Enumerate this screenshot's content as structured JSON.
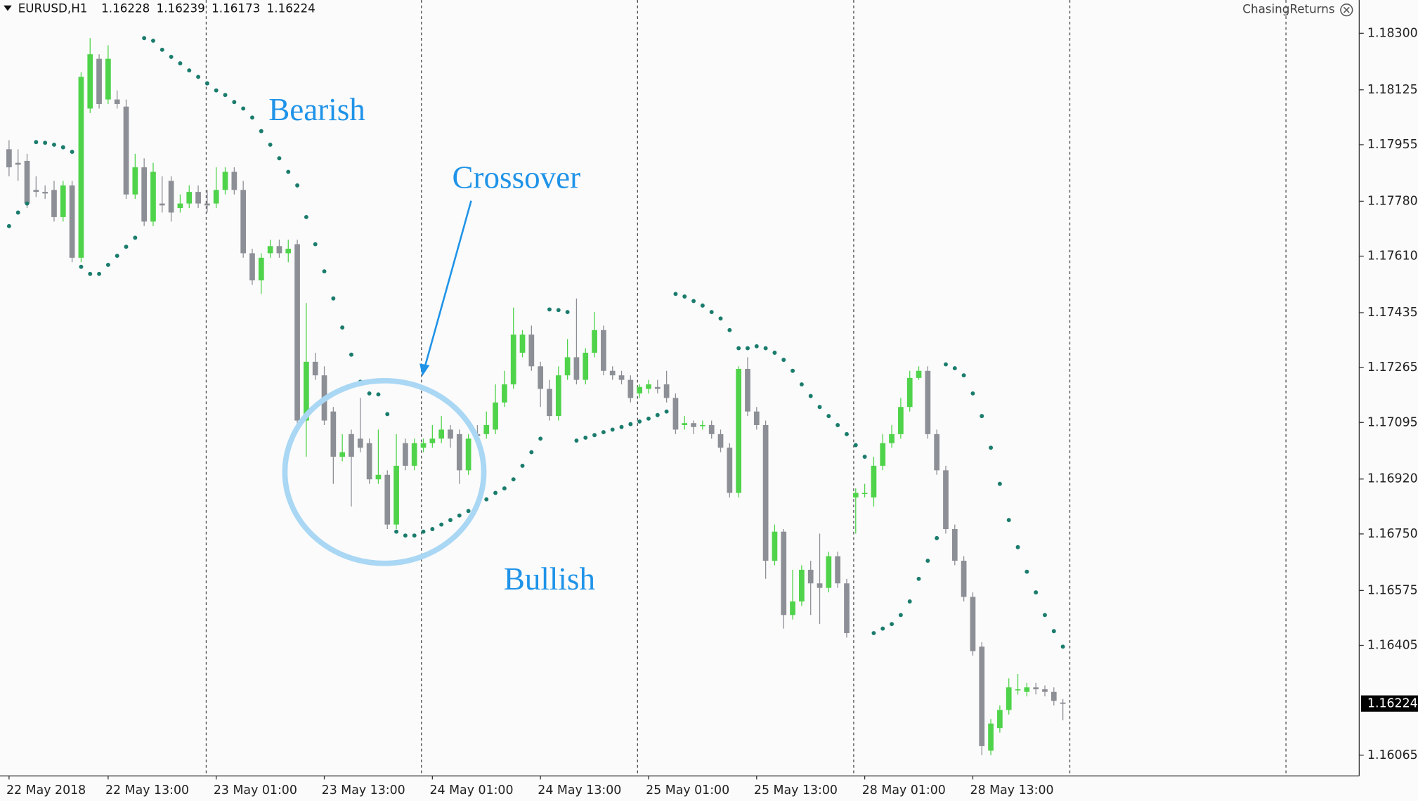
{
  "header": {
    "symbol": "EURUSD,H1",
    "watermark": "ChasingReturns"
  },
  "chart_data": {
    "type": "candlestick",
    "categories": [
      "22 May 2018",
      null,
      null,
      null,
      null,
      null,
      null,
      null,
      null,
      null,
      null,
      "22 May 13:00",
      null,
      null,
      null,
      null,
      null,
      null,
      null,
      null,
      null,
      null,
      null,
      "23 May 01:00",
      null,
      null,
      null,
      null,
      null,
      null,
      null,
      null,
      null,
      null,
      null,
      "23 May 13:00",
      null,
      null,
      null,
      null,
      null,
      null,
      null,
      null,
      null,
      null,
      null,
      "24 May 01:00",
      null,
      null,
      null,
      null,
      null,
      null,
      null,
      null,
      null,
      null,
      null,
      "24 May 13:00",
      null,
      null,
      null,
      null,
      null,
      null,
      null,
      null,
      null,
      null,
      null,
      "25 May 01:00",
      null,
      null,
      null,
      null,
      null,
      null,
      null,
      null,
      null,
      null,
      null,
      "25 May 13:00",
      null,
      null,
      null,
      null,
      null,
      null,
      null,
      null,
      null,
      null,
      null,
      "28 May 01:00",
      null,
      null,
      null,
      null,
      null,
      null,
      null,
      null,
      null,
      null,
      null,
      "28 May 13:00",
      null,
      null,
      null,
      null,
      null,
      null,
      null,
      null,
      null,
      null
    ],
    "open": [
      1.17941,
      1.17899,
      1.17905,
      1.17815,
      1.17809,
      1.17815,
      1.17731,
      1.17829,
      1.17605,
      1.18067,
      1.18221,
      1.18095,
      1.18095,
      1.18073,
      1.17801,
      1.17885,
      1.17717,
      1.17773,
      1.17843,
      1.17759,
      1.17773,
      1.17809,
      1.17773,
      1.17773,
      1.17815,
      1.17871,
      1.17815,
      1.17619,
      1.17535,
      1.17619,
      1.17641,
      1.17619,
      1.17647,
      1.17101,
      1.17283,
      1.17241,
      1.17129,
      1.16989,
      1.17059,
      1.17045,
      1.17031,
      1.16919,
      1.16933,
      1.16779,
      1.17031,
      1.16961,
      1.17017,
      1.17031,
      1.17045,
      1.17073,
      1.17059,
      1.16947,
      1.17059,
      1.17059,
      1.17073,
      1.17157,
      1.17213,
      1.17311,
      1.17367,
      1.17269,
      1.17199,
      1.17115,
      1.17241,
      1.17297,
      1.17227,
      1.17311,
      1.17381,
      1.17255,
      1.17241,
      1.17227,
      1.17185,
      1.17199,
      1.17205,
      1.17213,
      1.17171,
      1.17087,
      1.17093,
      1.17087,
      1.17087,
      1.17059,
      1.17017,
      1.16877,
      1.17261,
      1.17129,
      1.17087,
      1.16667,
      1.16757,
      1.16499,
      1.16541,
      1.16639,
      1.16597,
      1.16583,
      1.16681,
      1.16597,
      1.16863,
      1.16877,
      1.16863,
      1.16961,
      1.17031,
      1.17059,
      1.17143,
      1.17233,
      1.17255,
      1.17059,
      1.16947,
      1.16765,
      1.16667,
      1.16555,
      1.16401,
      1.16079,
      1.16149,
      1.16205,
      1.16269,
      1.16261,
      1.16275,
      1.16269,
      1.16261,
      1.16228
    ],
    "high": [
      1.17969,
      1.17941,
      1.17927,
      1.17857,
      1.17829,
      1.17843,
      1.17843,
      1.17843,
      1.18179,
      1.18285,
      1.18235,
      1.18263,
      1.18123,
      1.18095,
      1.17927,
      1.17913,
      1.17899,
      1.17857,
      1.17857,
      1.17801,
      1.17829,
      1.17829,
      1.17815,
      1.17885,
      1.17885,
      1.17885,
      1.17843,
      1.17633,
      1.17619,
      1.17661,
      1.17661,
      1.17661,
      1.17661,
      1.17465,
      1.17311,
      1.17269,
      1.17143,
      1.17059,
      1.17073,
      1.17171,
      1.17045,
      1.17073,
      1.16947,
      1.17059,
      1.17045,
      1.17045,
      1.17045,
      1.17087,
      1.17115,
      1.17087,
      1.17073,
      1.17059,
      1.17087,
      1.17129,
      1.17213,
      1.17255,
      1.17451,
      1.17381,
      1.17395,
      1.17283,
      1.17227,
      1.17269,
      1.17353,
      1.17479,
      1.17325,
      1.17437,
      1.17395,
      1.17269,
      1.17255,
      1.17241,
      1.17213,
      1.17227,
      1.17227,
      1.17255,
      1.17185,
      1.17115,
      1.17101,
      1.17101,
      1.17101,
      1.17073,
      1.17031,
      1.17269,
      1.17297,
      1.17143,
      1.17101,
      1.16779,
      1.16765,
      1.16639,
      1.16653,
      1.16667,
      1.16751,
      1.16695,
      1.16695,
      1.16611,
      1.16891,
      1.16905,
      1.16989,
      1.17059,
      1.17087,
      1.17171,
      1.17255,
      1.17269,
      1.17269,
      1.17073,
      1.16961,
      1.16779,
      1.16681,
      1.16569,
      1.16415,
      1.16177,
      1.16219,
      1.16303,
      1.16317,
      1.16289,
      1.16289,
      1.16281,
      1.16275,
      1.16239
    ],
    "low": [
      1.17857,
      1.17843,
      1.17759,
      1.17793,
      1.17787,
      1.17717,
      1.17717,
      1.17591,
      1.17591,
      1.18053,
      1.18067,
      1.18081,
      1.18067,
      1.17787,
      1.17787,
      1.17703,
      1.17703,
      1.17745,
      1.17717,
      1.17745,
      1.17759,
      1.17759,
      1.17745,
      1.17759,
      1.17801,
      1.17801,
      1.17605,
      1.17521,
      1.17493,
      1.17605,
      1.17605,
      1.17591,
      1.17087,
      1.16989,
      1.17227,
      1.17087,
      1.16905,
      1.16975,
      1.16835,
      1.17003,
      1.16905,
      1.16905,
      1.16765,
      1.16765,
      1.16947,
      1.16947,
      1.17003,
      1.17017,
      1.17031,
      1.17017,
      1.16905,
      1.16933,
      1.17031,
      1.17045,
      1.17059,
      1.17143,
      1.17199,
      1.17297,
      1.17255,
      1.17143,
      1.17101,
      1.17101,
      1.17227,
      1.17213,
      1.17213,
      1.17297,
      1.17241,
      1.17227,
      1.17213,
      1.17157,
      1.17171,
      1.17185,
      1.17185,
      1.17157,
      1.17059,
      1.17073,
      1.17059,
      1.17073,
      1.17045,
      1.17003,
      1.16863,
      1.16863,
      1.17115,
      1.17073,
      1.16611,
      1.16653,
      1.16457,
      1.16485,
      1.16527,
      1.16499,
      1.16471,
      1.16569,
      1.16583,
      1.16429,
      1.16751,
      1.16863,
      1.16835,
      1.16947,
      1.17017,
      1.17045,
      1.17129,
      1.17227,
      1.17045,
      1.16933,
      1.16751,
      1.16653,
      1.16541,
      1.16373,
      1.16065,
      1.16065,
      1.16135,
      1.16191,
      1.16253,
      1.16247,
      1.16253,
      1.16247,
      1.16219,
      1.16173
    ],
    "close": [
      1.17885,
      1.17893,
      1.17773,
      1.17809,
      1.17804,
      1.17731,
      1.17829,
      1.17605,
      1.18165,
      1.18235,
      1.18081,
      1.18221,
      1.18081,
      1.17801,
      1.17885,
      1.17717,
      1.17871,
      1.17767,
      1.17745,
      1.17773,
      1.17809,
      1.17773,
      1.17767,
      1.17815,
      1.17871,
      1.17815,
      1.17619,
      1.17535,
      1.17605,
      1.17641,
      1.17619,
      1.17633,
      1.17101,
      1.17283,
      1.17241,
      1.17101,
      1.16989,
      1.17003,
      1.16989,
      1.17017,
      1.16919,
      1.16933,
      1.16779,
      1.16961,
      1.16961,
      1.17031,
      1.17031,
      1.17045,
      1.17073,
      1.17045,
      1.16947,
      1.17045,
      1.17053,
      1.17087,
      1.17157,
      1.17213,
      1.17367,
      1.17367,
      1.17269,
      1.17199,
      1.17115,
      1.17241,
      1.17297,
      1.17227,
      1.17311,
      1.17381,
      1.17255,
      1.17241,
      1.17227,
      1.17171,
      1.17205,
      1.17213,
      1.17199,
      1.17171,
      1.17073,
      1.17093,
      1.17081,
      1.17087,
      1.17059,
      1.17017,
      1.16877,
      1.17261,
      1.17129,
      1.17087,
      1.16667,
      1.16757,
      1.16499,
      1.16541,
      1.16639,
      1.16597,
      1.16583,
      1.16681,
      1.16597,
      1.16443,
      1.16877,
      1.16877,
      1.16961,
      1.17031,
      1.17059,
      1.17143,
      1.17233,
      1.17255,
      1.17059,
      1.16947,
      1.16765,
      1.16667,
      1.16555,
      1.16387,
      1.16093,
      1.16163,
      1.16205,
      1.16275,
      1.16269,
      1.16275,
      1.16269,
      1.16261,
      1.16233,
      1.16224
    ],
    "sar": [
      1.17703,
      1.17745,
      1.17773,
      1.17963,
      1.17961,
      1.17955,
      1.17947,
      1.17933,
      1.17577,
      1.17555,
      1.17555,
      1.17583,
      1.17611,
      1.17639,
      1.17667,
      1.18285,
      1.18277,
      1.18249,
      1.18227,
      1.18207,
      1.18185,
      1.18165,
      1.18145,
      1.18123,
      1.18109,
      1.18087,
      1.18067,
      1.18039,
      1.17997,
      1.17955,
      1.17913,
      1.17871,
      1.17829,
      1.17731,
      1.17647,
      1.17563,
      1.17479,
      1.17389,
      1.17305,
      1.17221,
      1.17185,
      1.17182,
      1.17121,
      1.16757,
      1.16745,
      1.16745,
      1.16757,
      1.16765,
      1.16779,
      1.16793,
      1.16807,
      1.16821,
      1.16841,
      1.16857,
      1.16877,
      1.16891,
      1.16919,
      1.16961,
      1.17003,
      1.17045,
      1.17445,
      1.17443,
      1.17437,
      1.17039,
      1.17048,
      1.17056,
      1.17065,
      1.17073,
      1.17081,
      1.1709,
      1.17098,
      1.17107,
      1.17118,
      1.17129,
      1.17493,
      1.17485,
      1.17471,
      1.17457,
      1.17437,
      1.17417,
      1.17381,
      1.17325,
      1.17325,
      1.17331,
      1.17325,
      1.17311,
      1.17289,
      1.17255,
      1.17213,
      1.17177,
      1.17143,
      1.17115,
      1.17087,
      1.17059,
      1.17025,
      1.16989,
      1.16443,
      1.16457,
      1.16471,
      1.16499,
      1.16541,
      1.16611,
      1.16667,
      1.16737,
      1.17275,
      1.17263,
      1.17241,
      1.17185,
      1.17115,
      1.17017,
      1.16905,
      1.16793,
      1.16709,
      1.16633,
      1.16569,
      1.16499,
      1.16449,
      1.16401
    ],
    "up_color": "#4fd34a",
    "down_color": "#8d8f96",
    "sar_color": "#1a7c6c",
    "ylim": [
      1.16001,
      1.18403
    ],
    "yticks": [
      {
        "value": 1.183,
        "label": "1.18300"
      },
      1.18125,
      1.17955,
      {
        "value": 1.1778,
        "label": "1.17780"
      },
      {
        "value": 1.1761,
        "label": "1.17610"
      },
      1.17435,
      1.17265,
      1.17095,
      {
        "value": 1.1692,
        "label": "1.16920"
      },
      {
        "value": 1.1675,
        "label": "1.16750"
      },
      1.16575,
      1.16405,
      1.16065
    ],
    "annotations": [
      "Bearish",
      "Crossover",
      "Bullish"
    ]
  }
}
